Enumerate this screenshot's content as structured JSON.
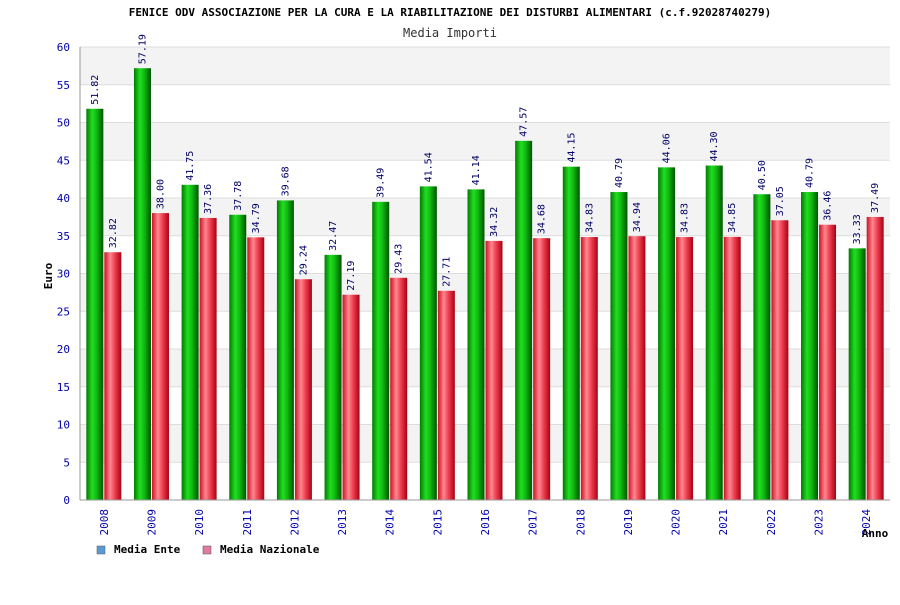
{
  "chart_data": {
    "type": "bar",
    "title": "FENICE ODV ASSOCIAZIONE PER LA CURA E LA RIABILITAZIONE DEI DISTURBI ALIMENTARI (c.f.92028740279)",
    "subtitle": "Media Importi",
    "xlabel": "Anno",
    "ylabel": "Euro",
    "ylim": [
      0,
      60
    ],
    "yticks": [
      0,
      5,
      10,
      15,
      20,
      25,
      30,
      35,
      40,
      45,
      50,
      55,
      60
    ],
    "grid": true,
    "legend_position": "bottom-left",
    "categories": [
      "2008",
      "2009",
      "2010",
      "2011",
      "2012",
      "2013",
      "2014",
      "2015",
      "2016",
      "2017",
      "2018",
      "2019",
      "2020",
      "2021",
      "2022",
      "2023",
      "2024"
    ],
    "series": [
      {
        "name": "Media Ente",
        "legend_color": "#5b9bd5",
        "bar_color": "#11aa11",
        "values": [
          51.82,
          57.19,
          41.75,
          37.78,
          39.68,
          32.47,
          39.49,
          41.54,
          41.14,
          47.57,
          44.15,
          40.79,
          44.06,
          44.3,
          40.5,
          40.79,
          33.33
        ],
        "labels": [
          "51.82",
          "57.19",
          "41.75",
          "37.78",
          "39.68",
          "32.47",
          "39.49",
          "41.54",
          "41.14",
          "47.57",
          "44.15",
          "40.79",
          "44.06",
          "44.30",
          "40.50",
          "40.79",
          "33.33"
        ]
      },
      {
        "name": "Media Nazionale",
        "legend_color": "#e07aa0",
        "bar_color": "#ee3344",
        "values": [
          32.82,
          38.0,
          37.36,
          34.79,
          29.24,
          27.19,
          29.43,
          27.71,
          34.32,
          34.68,
          34.83,
          34.94,
          34.83,
          34.85,
          37.05,
          36.46,
          37.49
        ],
        "labels": [
          "32.82",
          "38.00",
          "37.36",
          "34.79",
          "29.24",
          "27.19",
          "29.43",
          "27.71",
          "34.32",
          "34.68",
          "34.83",
          "34.94",
          "34.83",
          "34.85",
          "37.05",
          "36.46",
          "37.49"
        ]
      }
    ]
  }
}
